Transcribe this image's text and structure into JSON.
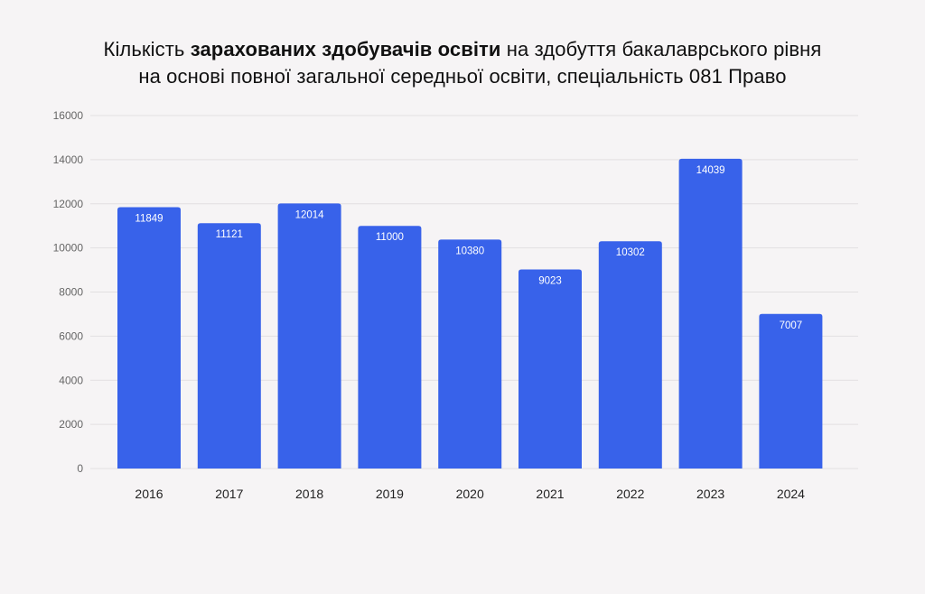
{
  "title": {
    "line1_pre": "Кількість ",
    "line1_bold": "зарахованих здобувачів освіти",
    "line1_post": " на здобуття бакалаврського рівня",
    "line2": "на основі повної загальної середньої освіти, спеціальність 081 Право"
  },
  "colors": {
    "bar": "#3862ea",
    "background": "#f6f4f5",
    "grid": "#e2dfe1"
  },
  "chart_data": {
    "type": "bar",
    "categories": [
      "2016",
      "2017",
      "2018",
      "2019",
      "2020",
      "2021",
      "2022",
      "2023",
      "2024"
    ],
    "values": [
      11849,
      11121,
      12014,
      11000,
      10380,
      9023,
      10302,
      14039,
      7007
    ],
    "data_labels": [
      "11849",
      "11121",
      "12014",
      "11000",
      "10380",
      "9023",
      "10302",
      "14039",
      "7007"
    ],
    "yticks": [
      "0",
      "2000",
      "4000",
      "6000",
      "8000",
      "10000",
      "12000",
      "14000",
      "16000"
    ],
    "ylim": [
      0,
      16000
    ],
    "xlabel": "",
    "ylabel": "",
    "grid": true,
    "legend": "none"
  }
}
